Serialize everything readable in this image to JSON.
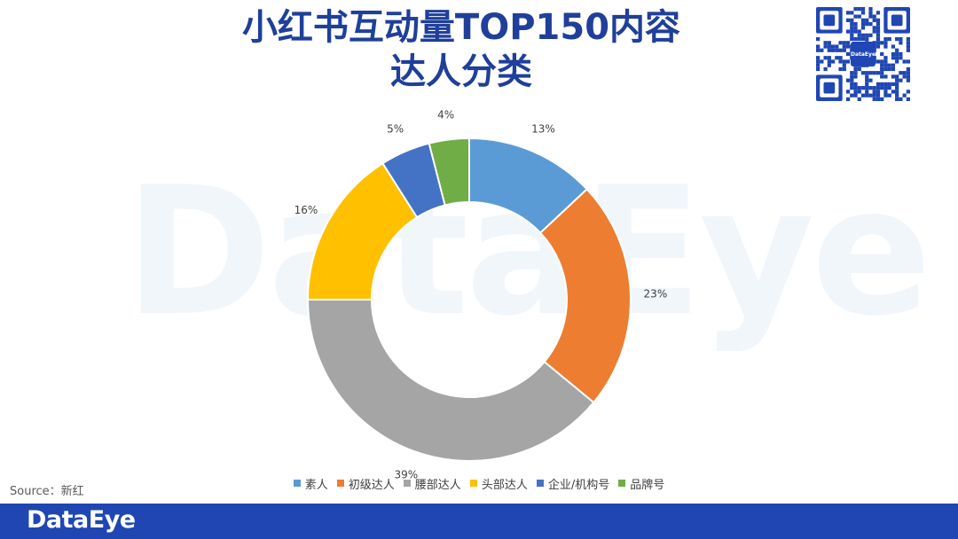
{
  "title_line1": "小红书互动量TOP150内容",
  "title_line2": "达人分类",
  "watermark": "DataEye",
  "source": "Source：新红",
  "footer_logo": "DataEye",
  "qr_center_text": "DataEye",
  "colors": {
    "title": "#1f3f9a",
    "footer": "#1f46b3",
    "watermark": "#f1f6fb"
  },
  "chart_data": {
    "type": "pie",
    "variant": "donut",
    "title": "",
    "legend_position": "bottom",
    "series": [
      {
        "name": "素人",
        "value": 13,
        "label": "13%",
        "color": "#5b9bd5"
      },
      {
        "name": "初级达人",
        "value": 23,
        "label": "23%",
        "color": "#ed7d31"
      },
      {
        "name": "腰部达人",
        "value": 39,
        "label": "39%",
        "color": "#a5a5a5"
      },
      {
        "name": "头部达人",
        "value": 16,
        "label": "16%",
        "color": "#ffc000"
      },
      {
        "name": "企业/机构号",
        "value": 5,
        "label": "5%",
        "color": "#4472c4"
      },
      {
        "name": "品牌号",
        "value": 4,
        "label": "4%",
        "color": "#70ad47"
      }
    ]
  }
}
